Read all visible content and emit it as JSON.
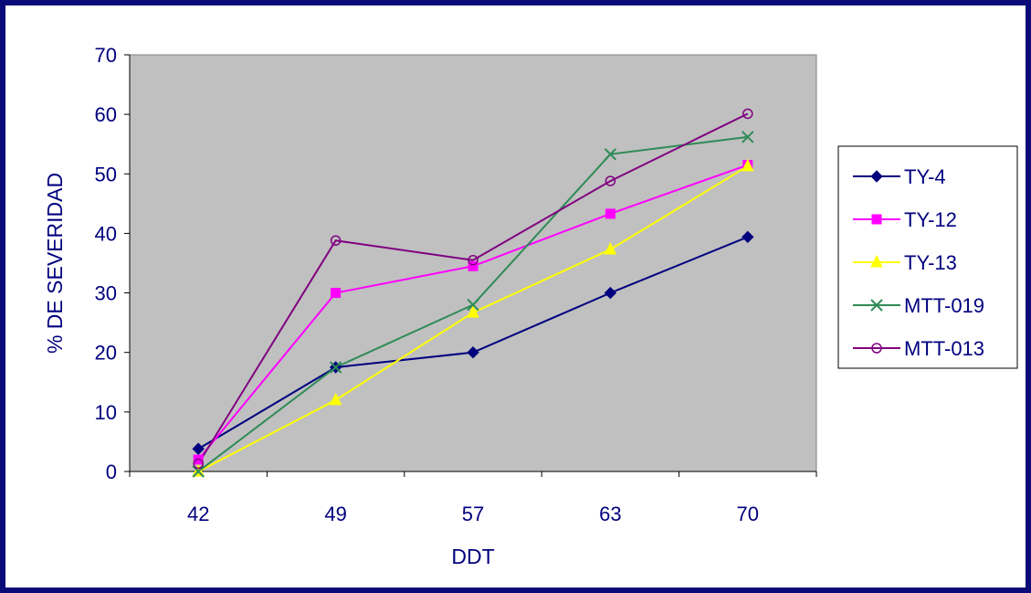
{
  "colors": {
    "frame": "#0a0a78",
    "plot_background": "#c0c0c0",
    "axis_text": "#00007f"
  },
  "chart_data": {
    "type": "line",
    "title": "",
    "xlabel": "DDT",
    "ylabel": "% DE SEVERIDAD",
    "categories": [
      "42",
      "49",
      "57",
      "63",
      "70"
    ],
    "ylim": [
      0,
      70
    ],
    "yticks": [
      0,
      10,
      20,
      30,
      40,
      50,
      60,
      70
    ],
    "grid": false,
    "legend_position": "right",
    "series": [
      {
        "name": "TY-4",
        "values": [
          3.8,
          17.5,
          20,
          30,
          39.4
        ],
        "color": "#00007f",
        "marker": "diamond"
      },
      {
        "name": "TY-12",
        "values": [
          2,
          30,
          34.5,
          43.3,
          51.5
        ],
        "color": "#ff00ff",
        "marker": "square"
      },
      {
        "name": "TY-13",
        "values": [
          0,
          12,
          26.7,
          37.3,
          51.3
        ],
        "color": "#ffff00",
        "marker": "triangle"
      },
      {
        "name": "MTT-019",
        "values": [
          0,
          17.5,
          28,
          53.3,
          56.2
        ],
        "color": "#2e8b57",
        "marker": "x"
      },
      {
        "name": "MTT-013",
        "values": [
          1.3,
          38.8,
          35.5,
          48.8,
          60.1
        ],
        "color": "#800080",
        "marker": "circle"
      }
    ]
  }
}
